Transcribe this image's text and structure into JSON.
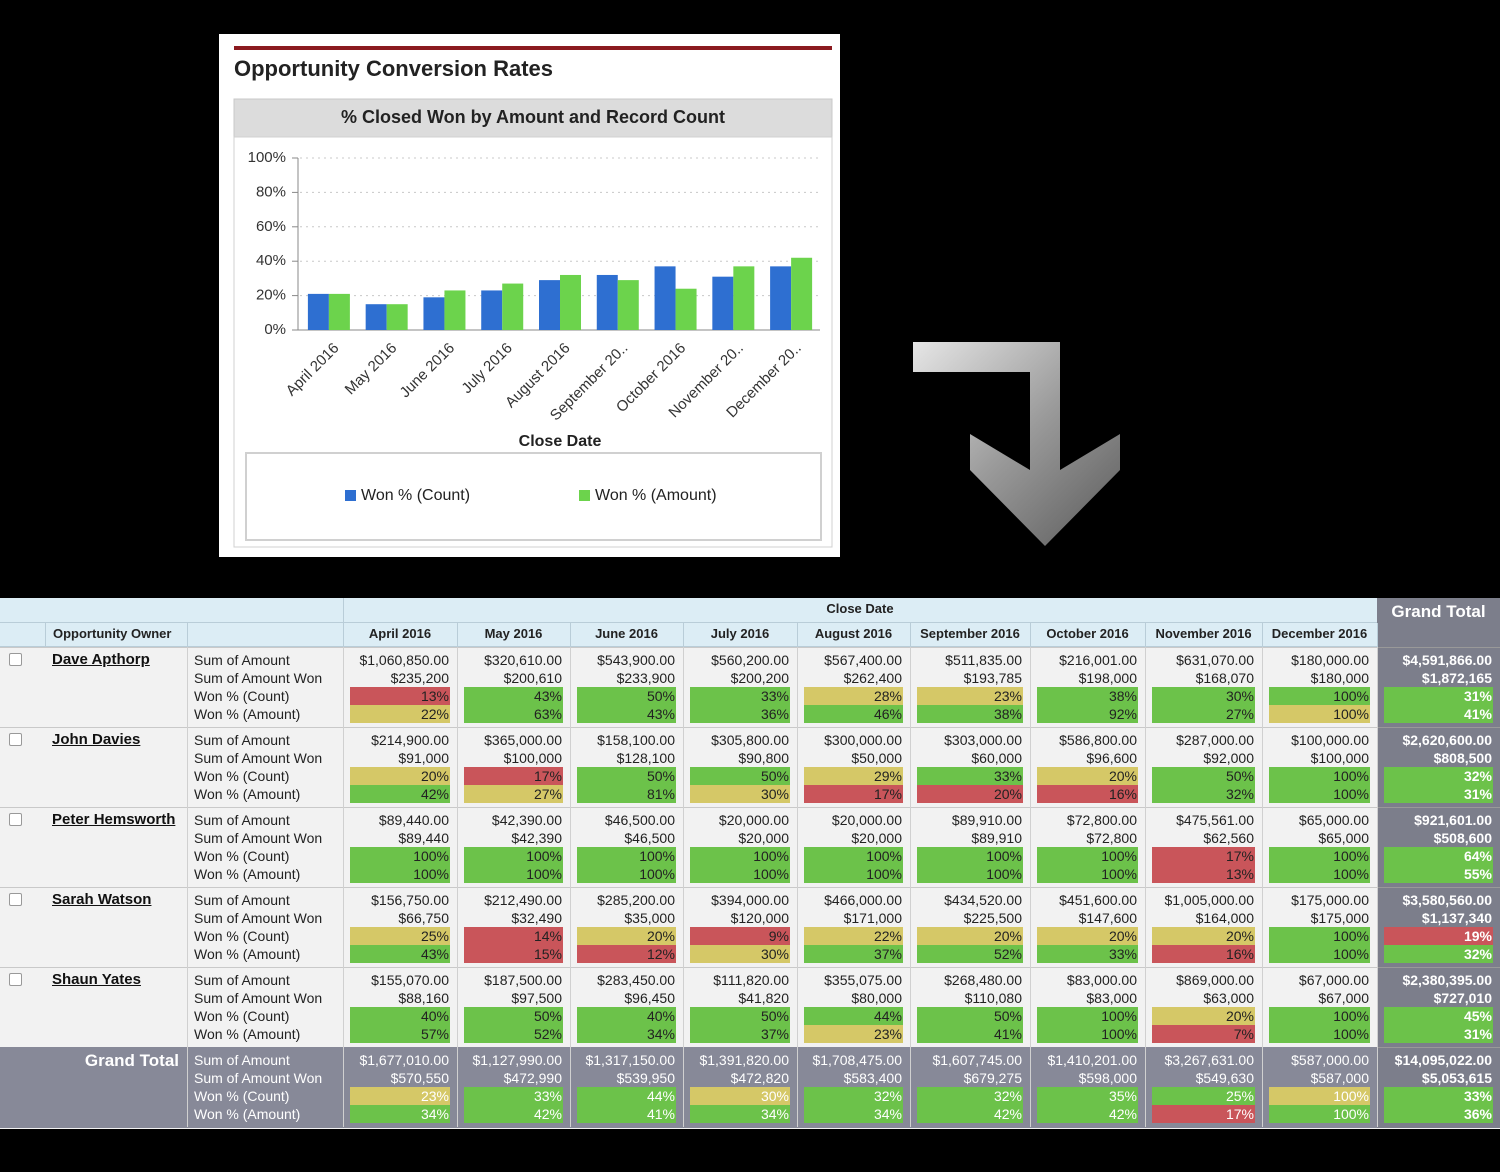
{
  "chart_data": {
    "type": "bar",
    "title": "Opportunity Conversion Rates",
    "subtitle": "% Closed Won by Amount and Record Count",
    "x_label": "Close Date",
    "categories": [
      "April 2016",
      "May 2016",
      "June 2016",
      "July 2016",
      "August 2016",
      "September 20..",
      "October 2016",
      "November 20..",
      "December 20.."
    ],
    "series": [
      {
        "name": "Won % (Count)",
        "color": "#2e6fd1",
        "values": [
          21,
          15,
          19,
          23,
          29,
          32,
          37,
          31,
          37
        ]
      },
      {
        "name": "Won % (Amount)",
        "color": "#6cd34c",
        "values": [
          21,
          15,
          23,
          27,
          32,
          29,
          24,
          37,
          42
        ]
      }
    ],
    "ylim": [
      0,
      100
    ],
    "yticks": [
      {
        "value": 0,
        "label": "0%"
      },
      {
        "value": 20,
        "label": "20%"
      },
      {
        "value": 40,
        "label": "40%"
      },
      {
        "value": 60,
        "label": "60%"
      },
      {
        "value": 80,
        "label": "80%"
      },
      {
        "value": 100,
        "label": "100%"
      }
    ],
    "grid": true
  },
  "table": {
    "header": {
      "close_date": "Close Date",
      "grand_total": "Grand Total",
      "owner": "Opportunity Owner",
      "months": [
        "April 2016",
        "May 2016",
        "June 2016",
        "July 2016",
        "August 2016",
        "September 2016",
        "October 2016",
        "November 2016",
        "December 2016"
      ]
    },
    "measures": [
      "Sum of Amount",
      "Sum of Amount Won",
      "Won % (Count)",
      "Won % (Amount)"
    ],
    "shade_colors": {
      "r": "#c9555a",
      "y": "#d5c867",
      "g": "#6cc24a"
    },
    "rows": [
      {
        "owner": "Dave Apthorp",
        "cells": [
          [
            "$1,060,850.00",
            "$320,610.00",
            "$543,900.00",
            "$560,200.00",
            "$567,400.00",
            "$511,835.00",
            "$216,001.00",
            "$631,070.00",
            "$180,000.00",
            "$4,591,866.00"
          ],
          [
            "$235,200",
            "$200,610",
            "$233,900",
            "$200,200",
            "$262,400",
            "$193,785",
            "$198,000",
            "$168,070",
            "$180,000",
            "$1,872,165"
          ],
          [
            "13%",
            "43%",
            "50%",
            "33%",
            "28%",
            "23%",
            "38%",
            "30%",
            "100%",
            "31%"
          ],
          [
            "22%",
            "63%",
            "43%",
            "36%",
            "46%",
            "38%",
            "92%",
            "27%",
            "100%",
            "41%"
          ]
        ],
        "shading": [
          "rgggyygggg",
          "ygggggggyg"
        ]
      },
      {
        "owner": "John Davies",
        "cells": [
          [
            "$214,900.00",
            "$365,000.00",
            "$158,100.00",
            "$305,800.00",
            "$300,000.00",
            "$303,000.00",
            "$586,800.00",
            "$287,000.00",
            "$100,000.00",
            "$2,620,600.00"
          ],
          [
            "$91,000",
            "$100,000",
            "$128,100",
            "$90,800",
            "$50,000",
            "$60,000",
            "$96,600",
            "$92,000",
            "$100,000",
            "$808,500"
          ],
          [
            "20%",
            "17%",
            "50%",
            "50%",
            "29%",
            "33%",
            "20%",
            "50%",
            "100%",
            "32%"
          ],
          [
            "42%",
            "27%",
            "81%",
            "30%",
            "17%",
            "20%",
            "16%",
            "32%",
            "100%",
            "31%"
          ]
        ],
        "shading": [
          "yrggygyggg",
          "gygyrrrggg"
        ]
      },
      {
        "owner": "Peter Hemsworth",
        "cells": [
          [
            "$89,440.00",
            "$42,390.00",
            "$46,500.00",
            "$20,000.00",
            "$20,000.00",
            "$89,910.00",
            "$72,800.00",
            "$475,561.00",
            "$65,000.00",
            "$921,601.00"
          ],
          [
            "$89,440",
            "$42,390",
            "$46,500",
            "$20,000",
            "$20,000",
            "$89,910",
            "$72,800",
            "$62,560",
            "$65,000",
            "$508,600"
          ],
          [
            "100%",
            "100%",
            "100%",
            "100%",
            "100%",
            "100%",
            "100%",
            "17%",
            "100%",
            "64%"
          ],
          [
            "100%",
            "100%",
            "100%",
            "100%",
            "100%",
            "100%",
            "100%",
            "13%",
            "100%",
            "55%"
          ]
        ],
        "shading": [
          "gggggggrgg",
          "gggggggrgg"
        ]
      },
      {
        "owner": "Sarah Watson",
        "cells": [
          [
            "$156,750.00",
            "$212,490.00",
            "$285,200.00",
            "$394,000.00",
            "$466,000.00",
            "$434,520.00",
            "$451,600.00",
            "$1,005,000.00",
            "$175,000.00",
            "$3,580,560.00"
          ],
          [
            "$66,750",
            "$32,490",
            "$35,000",
            "$120,000",
            "$171,000",
            "$225,500",
            "$147,600",
            "$164,000",
            "$175,000",
            "$1,137,340"
          ],
          [
            "25%",
            "14%",
            "20%",
            "9%",
            "22%",
            "20%",
            "20%",
            "20%",
            "100%",
            "19%"
          ],
          [
            "43%",
            "15%",
            "12%",
            "30%",
            "37%",
            "52%",
            "33%",
            "16%",
            "100%",
            "32%"
          ]
        ],
        "shading": [
          "yryryyyygr",
          "grrygggrgg"
        ]
      },
      {
        "owner": "Shaun Yates",
        "cells": [
          [
            "$155,070.00",
            "$187,500.00",
            "$283,450.00",
            "$111,820.00",
            "$355,075.00",
            "$268,480.00",
            "$83,000.00",
            "$869,000.00",
            "$67,000.00",
            "$2,380,395.00"
          ],
          [
            "$88,160",
            "$97,500",
            "$96,450",
            "$41,820",
            "$80,000",
            "$110,080",
            "$83,000",
            "$63,000",
            "$67,000",
            "$727,010"
          ],
          [
            "40%",
            "50%",
            "40%",
            "50%",
            "44%",
            "50%",
            "100%",
            "20%",
            "100%",
            "45%"
          ],
          [
            "57%",
            "52%",
            "34%",
            "37%",
            "23%",
            "41%",
            "100%",
            "7%",
            "100%",
            "31%"
          ]
        ],
        "shading": [
          "gggggggygg",
          "ggggyggrgg"
        ]
      }
    ],
    "grand_total_row": {
      "label": "Grand Total",
      "cells": [
        [
          "$1,677,010.00",
          "$1,127,990.00",
          "$1,317,150.00",
          "$1,391,820.00",
          "$1,708,475.00",
          "$1,607,745.00",
          "$1,410,201.00",
          "$3,267,631.00",
          "$587,000.00",
          "$14,095,022.00"
        ],
        [
          "$570,550",
          "$472,990",
          "$539,950",
          "$472,820",
          "$583,400",
          "$679,275",
          "$598,000",
          "$549,630",
          "$587,000",
          "$5,053,615"
        ],
        [
          "23%",
          "33%",
          "44%",
          "30%",
          "32%",
          "32%",
          "35%",
          "25%",
          "100%",
          "33%"
        ],
        [
          "34%",
          "42%",
          "41%",
          "34%",
          "34%",
          "42%",
          "42%",
          "17%",
          "100%",
          "36%"
        ]
      ],
      "shading": [
        "yggyggggyg",
        "gggggggrgg"
      ]
    }
  }
}
